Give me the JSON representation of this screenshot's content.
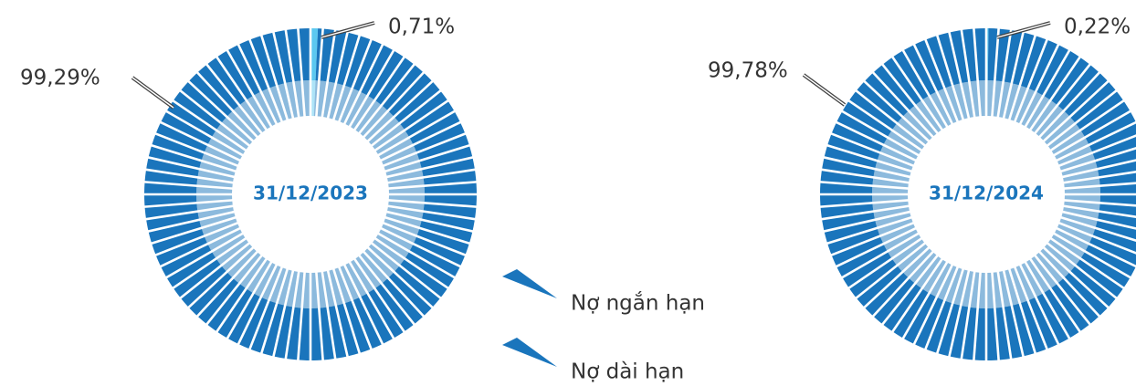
{
  "chart_data": [
    {
      "type": "pie",
      "title": "31/12/2023",
      "values": [
        0.71,
        99.29
      ],
      "value_labels": [
        "0,71%",
        "99,29%"
      ],
      "colors": [
        "#5bc8f0",
        "#1a75bc"
      ]
    },
    {
      "type": "pie",
      "title": "31/12/2024",
      "values": [
        0.22,
        99.78
      ],
      "value_labels": [
        "0,22%",
        "99,78%"
      ],
      "colors": [
        "#5bc8f0",
        "#1a75bc"
      ]
    }
  ],
  "legend": {
    "names": [
      "Nợ ngắn hạn",
      "Nợ dài hạn"
    ],
    "colors": [
      "#1a75bc",
      "#1a75bc"
    ]
  }
}
